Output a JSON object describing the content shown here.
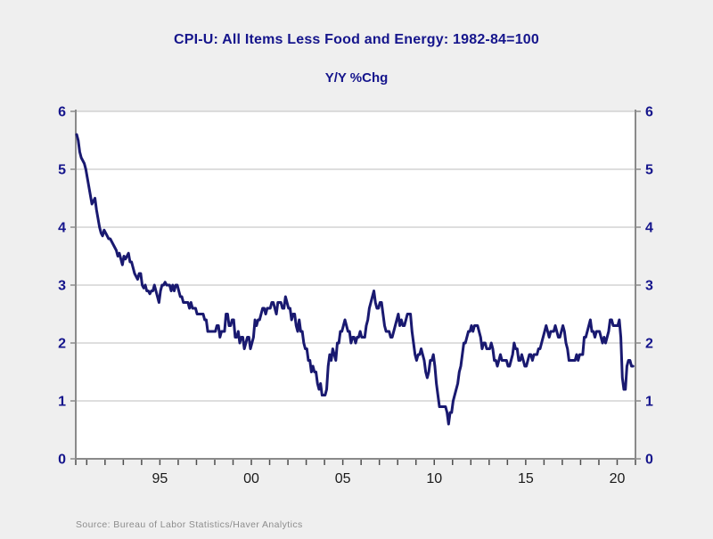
{
  "header": {
    "title": "CPI-U: All Items Less Food and Energy: 1982-84=100",
    "subtitle": "Y/Y %Chg"
  },
  "footer": {
    "source": "Source:  Bureau of Labor Statistics/Haver Analytics"
  },
  "colors": {
    "background": "#efefef",
    "plot_background": "#ffffff",
    "line": "#191970",
    "grid": "#c9c9c9",
    "frame": "#8a8a8a",
    "title_text": "#15158c",
    "ytick_text": "#15158c",
    "xtick_text": "#1a1a1a",
    "source_text": "#8c8c8c"
  },
  "chart_data": {
    "type": "line",
    "title": "CPI-U: All Items Less Food and Energy: 1982-84=100",
    "subtitle": "Y/Y %Chg",
    "xlabel": "",
    "ylabel": "",
    "ylim": [
      0,
      6
    ],
    "yticks": [
      0,
      1,
      2,
      3,
      4,
      5,
      6
    ],
    "ytick_labels": [
      "0",
      "1",
      "2",
      "3",
      "4",
      "5",
      "6"
    ],
    "y_axis_sides": [
      "left",
      "right"
    ],
    "xlim": [
      1990.4,
      2021.0
    ],
    "xtick_years": [
      1995,
      2000,
      2005,
      2010,
      2015,
      2020
    ],
    "xtick_labels": [
      "95",
      "00",
      "05",
      "10",
      "15",
      "20"
    ],
    "minor_xtick_interval_years": 1,
    "grid": "horizontal",
    "legend": "none",
    "series": [
      {
        "name": "CPI-U: All Items Less Food and Energy, Y/Y %Chg",
        "frequency": "monthly",
        "x_start": 1990.45,
        "x_step_years": 0.0833333,
        "values": [
          5.6,
          5.5,
          5.3,
          5.2,
          5.15,
          5.1,
          5.0,
          4.85,
          4.7,
          4.55,
          4.4,
          4.45,
          4.5,
          4.3,
          4.15,
          4.0,
          3.9,
          3.85,
          3.95,
          3.9,
          3.85,
          3.8,
          3.8,
          3.75,
          3.7,
          3.65,
          3.6,
          3.5,
          3.55,
          3.45,
          3.35,
          3.5,
          3.45,
          3.5,
          3.55,
          3.4,
          3.4,
          3.3,
          3.2,
          3.15,
          3.1,
          3.2,
          3.2,
          3.0,
          2.95,
          3.0,
          2.9,
          2.9,
          2.85,
          2.9,
          2.9,
          3.0,
          2.9,
          2.8,
          2.7,
          2.9,
          3.0,
          3.0,
          3.05,
          3.0,
          3.0,
          3.0,
          2.9,
          3.0,
          2.9,
          3.0,
          3.0,
          2.9,
          2.8,
          2.8,
          2.7,
          2.7,
          2.7,
          2.7,
          2.6,
          2.7,
          2.6,
          2.6,
          2.6,
          2.5,
          2.5,
          2.5,
          2.5,
          2.5,
          2.4,
          2.4,
          2.2,
          2.2,
          2.2,
          2.2,
          2.2,
          2.2,
          2.3,
          2.3,
          2.1,
          2.2,
          2.2,
          2.2,
          2.5,
          2.5,
          2.3,
          2.3,
          2.4,
          2.4,
          2.1,
          2.1,
          2.2,
          2.0,
          2.1,
          2.1,
          1.9,
          2.0,
          2.1,
          2.1,
          1.9,
          2.0,
          2.1,
          2.4,
          2.3,
          2.4,
          2.4,
          2.5,
          2.6,
          2.6,
          2.5,
          2.6,
          2.6,
          2.6,
          2.7,
          2.7,
          2.6,
          2.5,
          2.7,
          2.7,
          2.7,
          2.6,
          2.6,
          2.8,
          2.7,
          2.6,
          2.6,
          2.4,
          2.5,
          2.5,
          2.3,
          2.2,
          2.4,
          2.2,
          2.2,
          2.0,
          1.9,
          1.9,
          1.7,
          1.7,
          1.5,
          1.6,
          1.5,
          1.5,
          1.3,
          1.2,
          1.3,
          1.1,
          1.1,
          1.1,
          1.2,
          1.6,
          1.8,
          1.7,
          1.9,
          1.8,
          1.7,
          2.0,
          2.0,
          2.2,
          2.2,
          2.3,
          2.4,
          2.3,
          2.2,
          2.2,
          2.0,
          2.1,
          2.1,
          2.0,
          2.1,
          2.1,
          2.2,
          2.1,
          2.1,
          2.1,
          2.3,
          2.4,
          2.6,
          2.7,
          2.8,
          2.9,
          2.7,
          2.6,
          2.6,
          2.7,
          2.7,
          2.5,
          2.3,
          2.2,
          2.2,
          2.2,
          2.1,
          2.1,
          2.2,
          2.3,
          2.4,
          2.5,
          2.3,
          2.4,
          2.3,
          2.3,
          2.4,
          2.5,
          2.5,
          2.5,
          2.2,
          2.0,
          1.8,
          1.7,
          1.8,
          1.8,
          1.9,
          1.8,
          1.7,
          1.5,
          1.4,
          1.5,
          1.7,
          1.7,
          1.8,
          1.6,
          1.3,
          1.1,
          0.9,
          0.9,
          0.9,
          0.9,
          0.9,
          0.8,
          0.6,
          0.8,
          0.8,
          1.0,
          1.1,
          1.2,
          1.3,
          1.5,
          1.6,
          1.8,
          2.0,
          2.0,
          2.1,
          2.2,
          2.2,
          2.3,
          2.2,
          2.3,
          2.3,
          2.3,
          2.2,
          2.1,
          1.9,
          2.0,
          2.0,
          1.9,
          1.9,
          1.9,
          2.0,
          1.9,
          1.7,
          1.7,
          1.6,
          1.7,
          1.8,
          1.7,
          1.7,
          1.7,
          1.7,
          1.6,
          1.6,
          1.7,
          1.8,
          2.0,
          1.9,
          1.9,
          1.7,
          1.7,
          1.8,
          1.7,
          1.6,
          1.6,
          1.7,
          1.8,
          1.8,
          1.7,
          1.8,
          1.8,
          1.8,
          1.9,
          1.9,
          2.0,
          2.1,
          2.2,
          2.3,
          2.2,
          2.1,
          2.2,
          2.2,
          2.2,
          2.3,
          2.2,
          2.1,
          2.1,
          2.2,
          2.3,
          2.2,
          2.0,
          1.9,
          1.7,
          1.7,
          1.7,
          1.7,
          1.7,
          1.8,
          1.7,
          1.8,
          1.8,
          1.8,
          2.1,
          2.1,
          2.2,
          2.3,
          2.4,
          2.2,
          2.2,
          2.1,
          2.2,
          2.2,
          2.2,
          2.1,
          2.0,
          2.1,
          2.0,
          2.1,
          2.2,
          2.4,
          2.4,
          2.3,
          2.3,
          2.3,
          2.3,
          2.4,
          2.1,
          1.4,
          1.2,
          1.2,
          1.6,
          1.7,
          1.7,
          1.6,
          1.6
        ]
      }
    ]
  }
}
